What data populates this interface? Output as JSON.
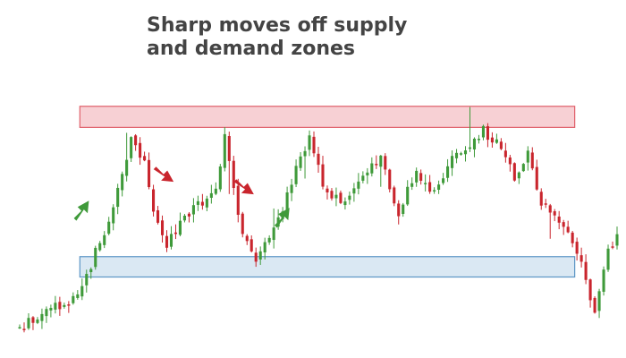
{
  "title": {
    "line1": "Sharp moves off supply",
    "line2": "and demand zones"
  },
  "colors": {
    "bull": "#3f9a3a",
    "bear": "#c9252d",
    "supply_fill": "#f6c8cc",
    "supply_stroke": "#e0606a",
    "demand_fill": "#d4e4f1",
    "demand_stroke": "#5b95c5",
    "text": "#444444"
  },
  "chart_data": {
    "type": "candlestick",
    "title": "Sharp moves off supply and demand zones",
    "xlabel": "",
    "ylabel": "",
    "axes_visible": false,
    "grid": false,
    "ylim": [
      0,
      400
    ],
    "zones": [
      {
        "name": "supply",
        "from_candle": 14,
        "to_candle": 124,
        "low": 283,
        "high": 310
      },
      {
        "name": "demand",
        "from_candle": 14,
        "to_candle": 124,
        "low": 92,
        "high": 118
      }
    ],
    "arrows": [
      {
        "name": "up-arrow-1",
        "direction": "up",
        "color": "bull",
        "at_candle": 13,
        "value": 175
      },
      {
        "name": "down-arrow-1",
        "direction": "down",
        "color": "bear",
        "at_candle": 32,
        "value": 228
      },
      {
        "name": "down-arrow-2",
        "direction": "down",
        "color": "bear",
        "at_candle": 50,
        "value": 212
      },
      {
        "name": "up-arrow-2",
        "direction": "up",
        "color": "bull",
        "at_candle": 58,
        "value": 166
      }
    ],
    "anchors": [
      [
        0,
        28
      ],
      [
        6,
        50
      ],
      [
        12,
        65
      ],
      [
        15,
        95
      ],
      [
        19,
        150
      ],
      [
        22,
        200
      ],
      [
        25,
        268
      ],
      [
        28,
        235
      ],
      [
        30,
        175
      ],
      [
        33,
        135
      ],
      [
        38,
        175
      ],
      [
        44,
        200
      ],
      [
        46,
        268
      ],
      [
        48,
        205
      ],
      [
        50,
        150
      ],
      [
        53,
        110
      ],
      [
        57,
        150
      ],
      [
        62,
        230
      ],
      [
        65,
        268
      ],
      [
        68,
        210
      ],
      [
        72,
        185
      ],
      [
        76,
        210
      ],
      [
        81,
        245
      ],
      [
        85,
        175
      ],
      [
        89,
        230
      ],
      [
        92,
        195
      ],
      [
        98,
        250
      ],
      [
        104,
        278
      ],
      [
        108,
        262
      ],
      [
        111,
        215
      ],
      [
        114,
        250
      ],
      [
        117,
        190
      ],
      [
        120,
        165
      ],
      [
        124,
        138
      ],
      [
        127,
        92
      ],
      [
        129,
        40
      ],
      [
        132,
        125
      ],
      [
        134,
        140
      ]
    ],
    "series": [
      {
        "name": "",
        "candles": 135
      }
    ]
  }
}
